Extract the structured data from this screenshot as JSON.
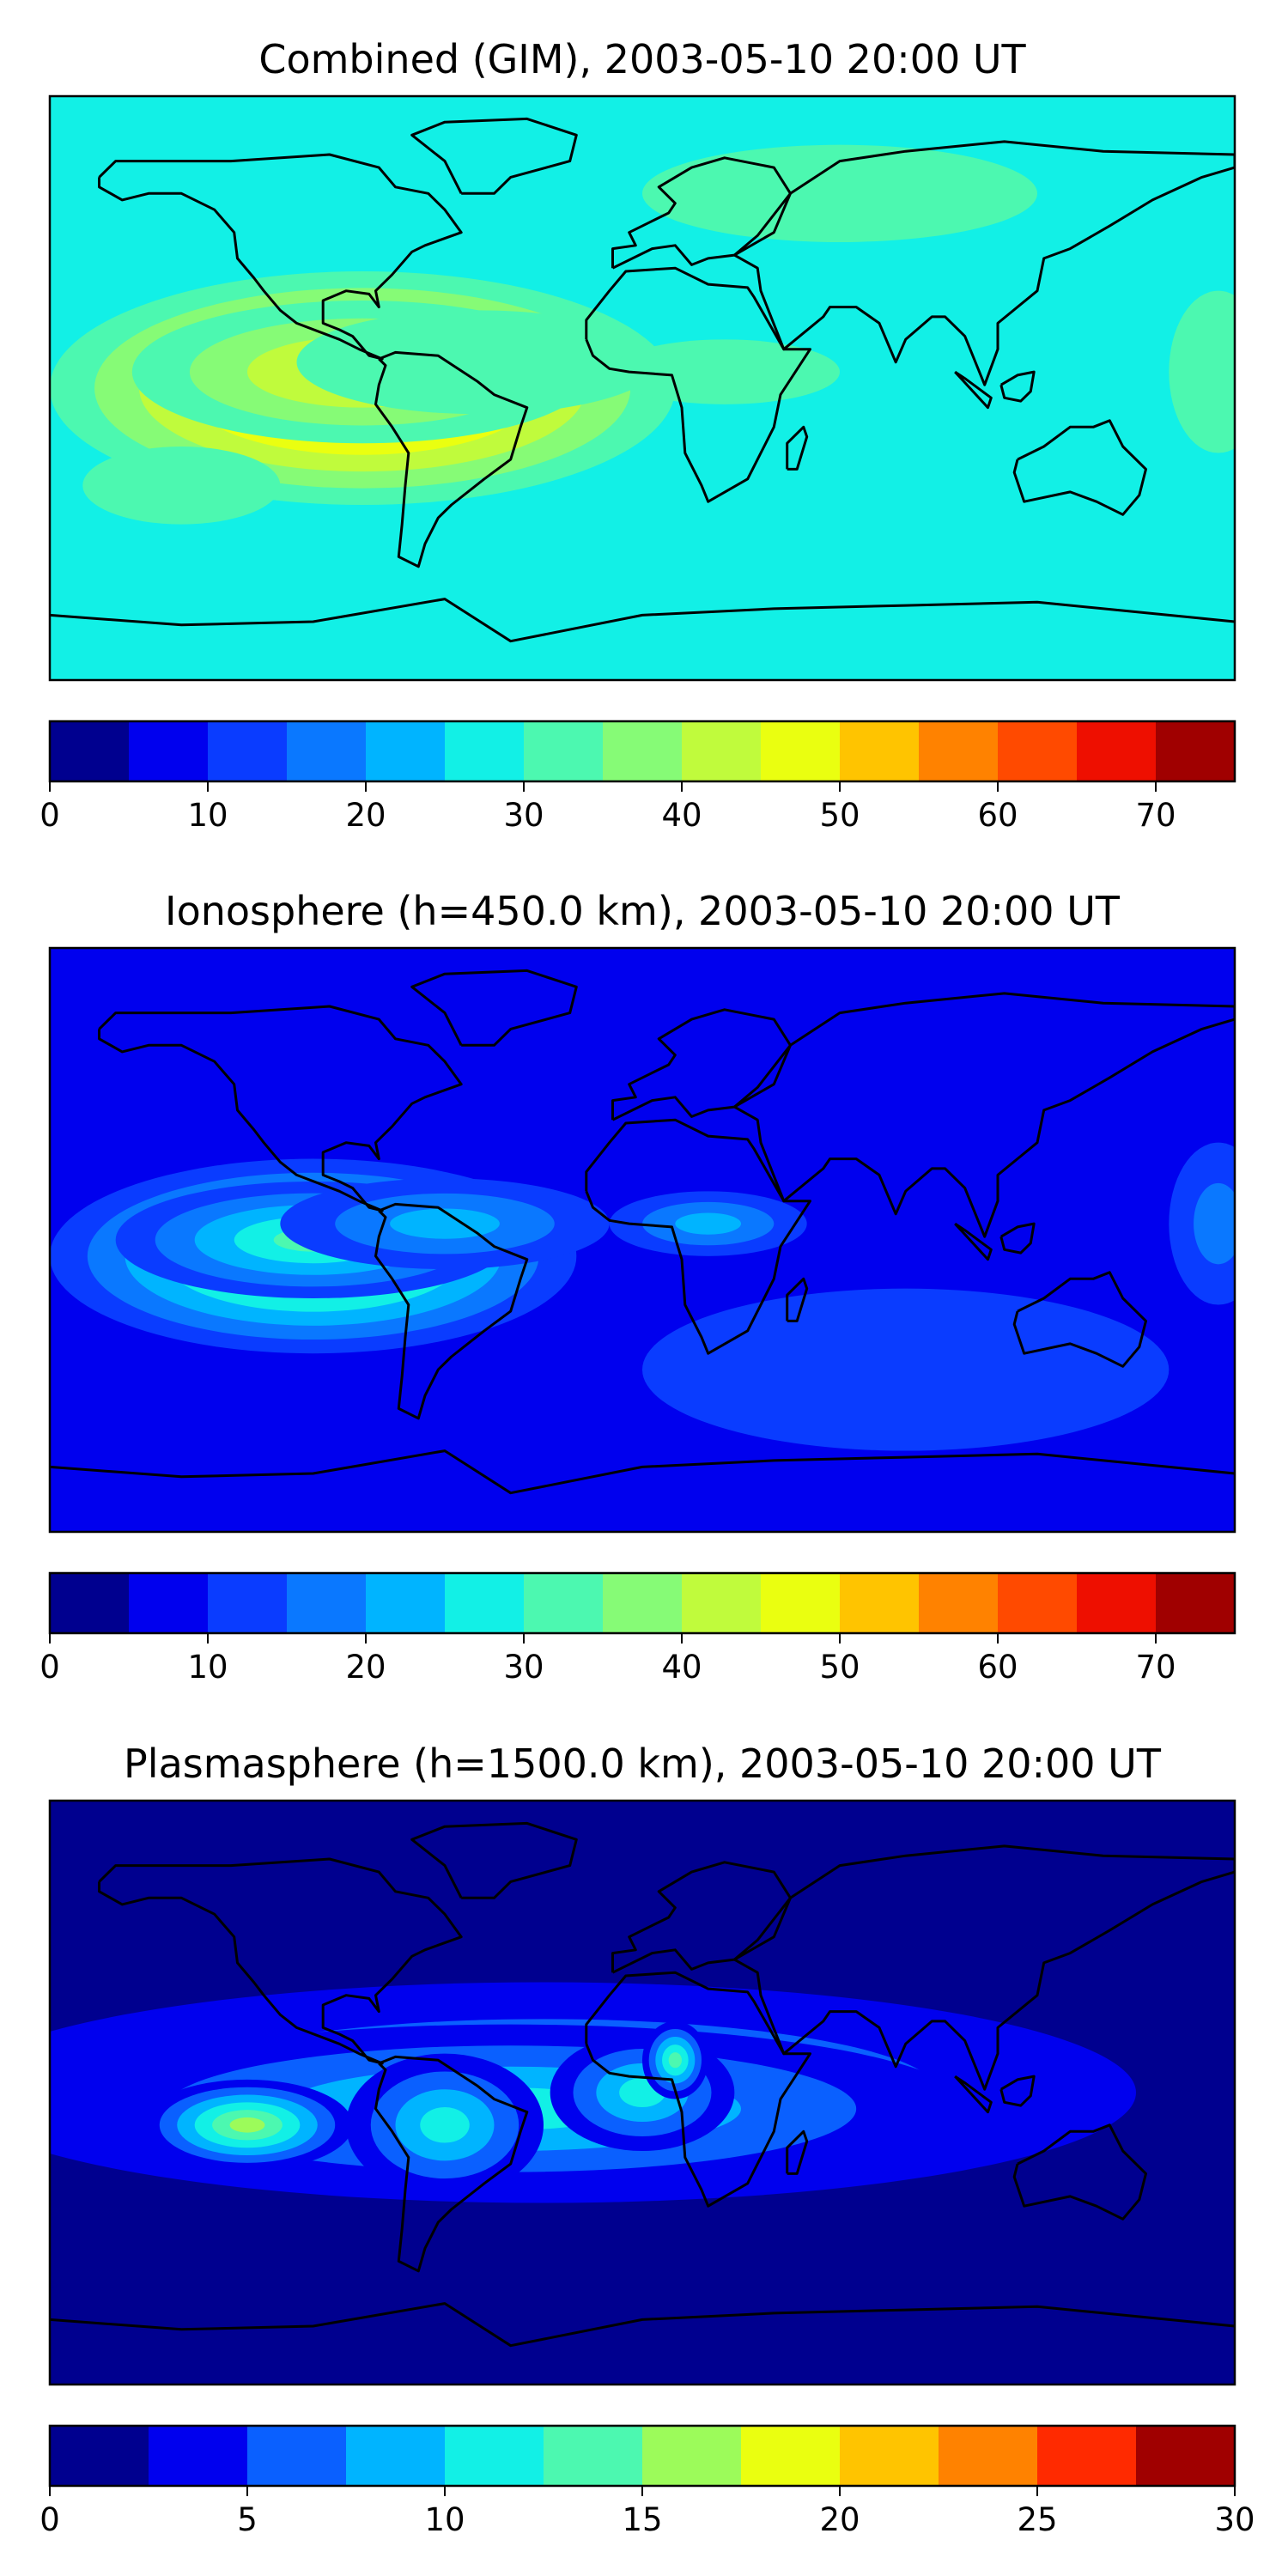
{
  "figure": {
    "background": "#ffffff",
    "map_ocean_base": "#0000d2",
    "coastline_color": "#000000"
  },
  "chart_data": [
    {
      "type": "heatmap",
      "title": "Combined (GIM), 2003-05-10 20:00 UT",
      "xlabel": "",
      "ylabel": "",
      "colorbar": {
        "levels": [
          0,
          5,
          10,
          15,
          20,
          25,
          30,
          35,
          40,
          45,
          50,
          55,
          60,
          65,
          70,
          75
        ],
        "tick_values": [
          0,
          10,
          20,
          30,
          40,
          50,
          60,
          70
        ],
        "tick_labels": [
          "0",
          "10",
          "20",
          "30",
          "40",
          "50",
          "60",
          "70"
        ],
        "colors": [
          "#00008f",
          "#0000ee",
          "#0a3cff",
          "#0a78ff",
          "#00b4ff",
          "#12f0e6",
          "#4cf8b0",
          "#86fb76",
          "#c0fb3c",
          "#eaff10",
          "#ffc400",
          "#ff8200",
          "#ff4a00",
          "#ee0f00",
          "#a00000"
        ]
      },
      "field_base_level": 5,
      "blobs": [
        {
          "lon": -85,
          "lat": 0,
          "level": 12,
          "rx": 95,
          "ry": 36
        },
        {
          "lon": -85,
          "lat": 5,
          "level": 9,
          "rx": 70,
          "ry": 22
        },
        {
          "lon": -50,
          "lat": 8,
          "level": 5,
          "rx": 55,
          "ry": 16
        },
        {
          "lon": 25,
          "lat": 5,
          "level": 5,
          "rx": 35,
          "ry": 10
        },
        {
          "lon": 175,
          "lat": 5,
          "level": 4,
          "rx": 15,
          "ry": 25
        },
        {
          "lon": 60,
          "lat": 60,
          "level": 2,
          "rx": 60,
          "ry": 15
        },
        {
          "lon": -140,
          "lat": -30,
          "level": 4,
          "rx": 30,
          "ry": 12
        }
      ]
    },
    {
      "type": "heatmap",
      "title": "Ionosphere  (h=450.0 km), 2003-05-10 20:00 UT",
      "xlabel": "",
      "ylabel": "",
      "colorbar": {
        "levels": [
          0,
          5,
          10,
          15,
          20,
          25,
          30,
          35,
          40,
          45,
          50,
          55,
          60,
          65,
          70,
          75
        ],
        "tick_values": [
          0,
          10,
          20,
          30,
          40,
          50,
          60,
          70
        ],
        "tick_labels": [
          "0",
          "10",
          "20",
          "30",
          "40",
          "50",
          "60",
          "70"
        ],
        "colors": [
          "#00008f",
          "#0000ee",
          "#0a3cff",
          "#0a78ff",
          "#00b4ff",
          "#12f0e6",
          "#4cf8b0",
          "#86fb76",
          "#c0fb3c",
          "#eaff10",
          "#ffc400",
          "#ff8200",
          "#ff4a00",
          "#ee0f00",
          "#a00000"
        ]
      },
      "field_base_level": 1,
      "blobs": [
        {
          "lon": -100,
          "lat": -5,
          "level": 8,
          "rx": 80,
          "ry": 30
        },
        {
          "lon": -100,
          "lat": 0,
          "level": 6,
          "rx": 60,
          "ry": 18
        },
        {
          "lon": -60,
          "lat": 5,
          "level": 4,
          "rx": 50,
          "ry": 14
        },
        {
          "lon": 20,
          "lat": 5,
          "level": 4,
          "rx": 30,
          "ry": 10
        },
        {
          "lon": 175,
          "lat": 5,
          "level": 3,
          "rx": 15,
          "ry": 25
        },
        {
          "lon": 80,
          "lat": -40,
          "level": 0,
          "rx": 80,
          "ry": 25
        }
      ]
    },
    {
      "type": "heatmap",
      "title": "Plasmasphere (h=1500.0 km), 2003-05-10 20:00 UT",
      "xlabel": "",
      "ylabel": "",
      "colorbar": {
        "levels": [
          0,
          2.5,
          5,
          7.5,
          10,
          12.5,
          15,
          17.5,
          20,
          22.5,
          25,
          27.5,
          30
        ],
        "tick_values": [
          0,
          5,
          10,
          15,
          20,
          25,
          30
        ],
        "tick_labels": [
          "0",
          "5",
          "10",
          "15",
          "20",
          "25",
          "30"
        ],
        "colors": [
          "#00008f",
          "#0000ee",
          "#0a60ff",
          "#00b4ff",
          "#12f0e6",
          "#4cf8b0",
          "#9cfb5a",
          "#eaff10",
          "#ffc400",
          "#ff8200",
          "#ff2a00",
          "#a00000"
        ]
      },
      "field_base_level": 0,
      "blobs": [
        {
          "lon": -30,
          "lat": 0,
          "level": 3,
          "rx": 180,
          "ry": 34
        },
        {
          "lon": -40,
          "lat": -5,
          "level": 4,
          "rx": 140,
          "ry": 26
        },
        {
          "lon": -120,
          "lat": -10,
          "level": 6,
          "rx": 32,
          "ry": 14
        },
        {
          "lon": -60,
          "lat": -10,
          "level": 4,
          "rx": 30,
          "ry": 22
        },
        {
          "lon": 0,
          "lat": 0,
          "level": 4,
          "rx": 28,
          "ry": 18
        },
        {
          "lon": 10,
          "lat": 10,
          "level": 5,
          "rx": 10,
          "ry": 12
        }
      ]
    }
  ]
}
